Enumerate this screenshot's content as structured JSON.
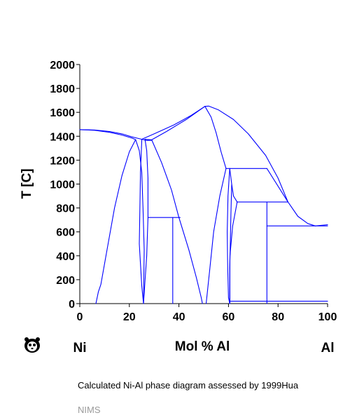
{
  "chart_data": {
    "type": "line",
    "title": "",
    "xlabel": "Mol % Al",
    "ylabel": "T [C]",
    "x_end_labels": {
      "left": "Ni",
      "right": "Al"
    },
    "xlim": [
      0,
      100
    ],
    "ylim": [
      0,
      2000
    ],
    "x_ticks": [
      0,
      20,
      40,
      60,
      80,
      100
    ],
    "y_ticks": [
      0,
      200,
      400,
      600,
      800,
      1000,
      1200,
      1400,
      1600,
      1800,
      2000
    ],
    "grid": false,
    "line_color": "#0000ff",
    "series": [
      {
        "points": [
          [
            0,
            1455
          ],
          [
            6,
            1452
          ],
          [
            12,
            1440
          ],
          [
            17,
            1420
          ],
          [
            21,
            1395
          ],
          [
            23,
            1385
          ],
          [
            25,
            1375
          ]
        ]
      },
      {
        "points": [
          [
            0,
            1455
          ],
          [
            6,
            1450
          ],
          [
            12,
            1433
          ],
          [
            17,
            1410
          ],
          [
            21,
            1385
          ],
          [
            22.5,
            1372
          ]
        ]
      },
      {
        "points": [
          [
            6.5,
            0
          ],
          [
            7.5,
            100
          ],
          [
            8.5,
            160
          ],
          [
            11,
            450
          ],
          [
            14,
            800
          ],
          [
            17,
            1070
          ],
          [
            20,
            1270
          ],
          [
            22.5,
            1372
          ]
        ]
      },
      {
        "points": [
          [
            22.5,
            1372
          ],
          [
            24,
            1280
          ],
          [
            25,
            1100
          ],
          [
            25.5,
            800
          ],
          [
            26,
            450
          ],
          [
            25.7,
            0
          ]
        ]
      },
      {
        "points": [
          [
            25,
            1375
          ],
          [
            25,
            1360
          ],
          [
            24.5,
            1100
          ],
          [
            24,
            500
          ],
          [
            25,
            150
          ],
          [
            25.7,
            0
          ]
        ]
      },
      {
        "points": [
          [
            25,
            1375
          ],
          [
            27,
            1365
          ],
          [
            29,
            1366
          ]
        ]
      },
      {
        "points": [
          [
            26.3,
            1375
          ],
          [
            27,
            1280
          ],
          [
            27.5,
            1050
          ],
          [
            27.5,
            720
          ],
          [
            27,
            400
          ],
          [
            25.7,
            0
          ]
        ]
      },
      {
        "points": [
          [
            25,
            1375
          ],
          [
            30,
            1420
          ],
          [
            38,
            1495
          ],
          [
            45,
            1575
          ],
          [
            50.5,
            1650
          ]
        ]
      },
      {
        "points": [
          [
            26.3,
            1375
          ],
          [
            29,
            1370
          ],
          [
            35,
            1440
          ],
          [
            43,
            1540
          ],
          [
            50.5,
            1650
          ]
        ]
      },
      {
        "points": [
          [
            29,
            1370
          ],
          [
            33,
            1180
          ],
          [
            37,
            950
          ],
          [
            40,
            720
          ],
          [
            44,
            450
          ],
          [
            47,
            220
          ],
          [
            49,
            50
          ],
          [
            49.5,
            0
          ]
        ]
      },
      {
        "points": [
          [
            27.5,
            720
          ],
          [
            40.5,
            720
          ]
        ]
      },
      {
        "points": [
          [
            37.5,
            720
          ],
          [
            37.5,
            0
          ]
        ]
      },
      {
        "points": [
          [
            50.5,
            1650
          ],
          [
            52,
            1652
          ],
          [
            56,
            1620
          ],
          [
            62,
            1540
          ],
          [
            68,
            1420
          ],
          [
            75,
            1240
          ],
          [
            80,
            1050
          ],
          [
            84,
            850
          ],
          [
            88,
            730
          ],
          [
            92,
            670
          ],
          [
            95,
            650
          ]
        ]
      },
      {
        "points": [
          [
            50.5,
            1650
          ],
          [
            53,
            1560
          ],
          [
            55,
            1430
          ],
          [
            57,
            1270
          ],
          [
            59,
            1130
          ]
        ]
      },
      {
        "points": [
          [
            59,
            1130
          ],
          [
            56.5,
            900
          ],
          [
            54,
            600
          ],
          [
            52.5,
            300
          ],
          [
            51.5,
            100
          ],
          [
            51,
            0
          ]
        ]
      },
      {
        "points": [
          [
            59,
            1130
          ],
          [
            75.5,
            1130
          ]
        ]
      },
      {
        "points": [
          [
            60.5,
            1130
          ],
          [
            59.8,
            900
          ],
          [
            59.5,
            600
          ],
          [
            59.7,
            300
          ],
          [
            60,
            50
          ],
          [
            60.5,
            0
          ]
        ]
      },
      {
        "points": [
          [
            60.5,
            1130
          ],
          [
            61.3,
            1000
          ],
          [
            62,
            900
          ],
          [
            63.5,
            850
          ]
        ]
      },
      {
        "points": [
          [
            61.3,
            1000
          ],
          [
            61,
            750
          ],
          [
            60.8,
            550
          ],
          [
            60.5,
            300
          ],
          [
            60.6,
            0
          ]
        ]
      },
      {
        "points": [
          [
            63.5,
            850
          ],
          [
            61.7,
            650
          ],
          [
            60.6,
            400
          ],
          [
            60.5,
            100
          ],
          [
            60.5,
            20
          ]
        ]
      },
      {
        "points": [
          [
            75.5,
            1130
          ],
          [
            84,
            850
          ]
        ]
      },
      {
        "points": [
          [
            63.5,
            850
          ],
          [
            84,
            850
          ]
        ]
      },
      {
        "points": [
          [
            75.5,
            850
          ],
          [
            75.5,
            0
          ]
        ]
      },
      {
        "points": [
          [
            75.5,
            650
          ],
          [
            100,
            650
          ]
        ]
      },
      {
        "points": [
          [
            95,
            650
          ],
          [
            100,
            660
          ]
        ]
      },
      {
        "points": [
          [
            60.5,
            20
          ],
          [
            100,
            20
          ]
        ]
      }
    ]
  },
  "caption": "Calculated Ni-Al phase diagram assessed by 1999Hua",
  "credit": "NIMS",
  "logo_icon": "panda-icon"
}
